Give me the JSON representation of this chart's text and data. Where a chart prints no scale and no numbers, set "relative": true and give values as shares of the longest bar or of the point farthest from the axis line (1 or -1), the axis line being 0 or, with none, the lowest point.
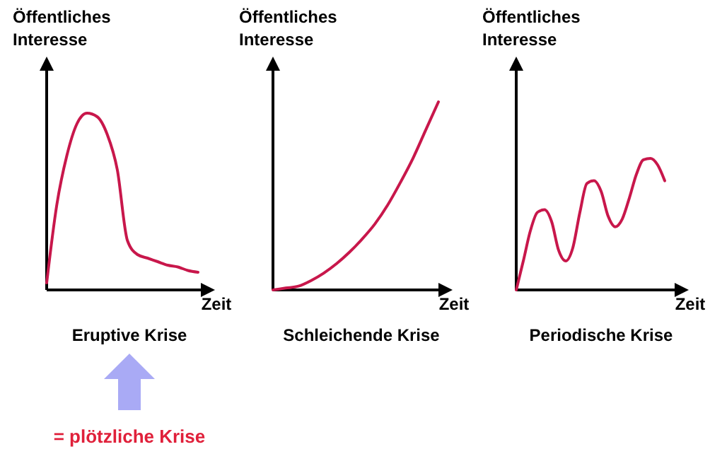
{
  "chart_data": [
    {
      "type": "line",
      "relative": true,
      "title": "Eruptive Krise",
      "xlabel": "Zeit",
      "ylabel": "Öffentliches Interesse",
      "annotations": [
        "= plötzliche Krise"
      ],
      "categories": [
        null,
        null,
        null,
        null,
        null,
        null,
        null,
        null,
        null,
        null,
        null,
        null,
        null,
        null,
        null,
        null
      ],
      "series": [
        {
          "color": "#c8174b",
          "values": [
            0.04,
            0.48,
            0.76,
            0.94,
            1.0,
            0.98,
            0.88,
            0.68,
            0.28,
            0.2,
            0.18,
            0.16,
            0.14,
            0.13,
            0.11,
            0.1
          ]
        }
      ]
    },
    {
      "type": "line",
      "relative": true,
      "title": "Schleichende Krise",
      "xlabel": "Zeit",
      "ylabel": "Öffentliches Interesse",
      "categories": [
        null,
        null,
        null,
        null,
        null,
        null,
        null,
        null,
        null,
        null,
        null,
        null,
        null,
        null
      ],
      "series": [
        {
          "color": "#c8174b",
          "values": [
            0.0,
            0.01,
            0.02,
            0.05,
            0.09,
            0.14,
            0.2,
            0.27,
            0.35,
            0.45,
            0.57,
            0.7,
            0.85,
            1.0
          ]
        }
      ]
    },
    {
      "type": "line",
      "relative": true,
      "title": "Periodische Krise",
      "xlabel": "Zeit",
      "ylabel": "Öffentliches Interesse",
      "categories": [
        null,
        null,
        null,
        null,
        null,
        null,
        null,
        null,
        null,
        null,
        null,
        null,
        null,
        null,
        null,
        null,
        null,
        null,
        null,
        null,
        null,
        null
      ],
      "series": [
        {
          "color": "#c8174b",
          "values": [
            0,
            0.22,
            0.45,
            0.59,
            0.61,
            0.52,
            0.3,
            0.22,
            0.32,
            0.59,
            0.81,
            0.83,
            0.75,
            0.56,
            0.48,
            0.54,
            0.7,
            0.88,
            0.99,
            1.0,
            0.95,
            0.83
          ]
        }
      ]
    }
  ]
}
